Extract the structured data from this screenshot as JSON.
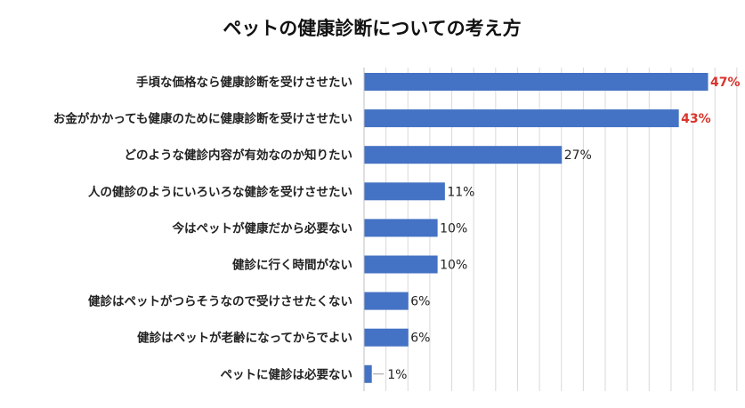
{
  "chart_data": {
    "type": "bar",
    "orientation": "horizontal",
    "title": "ペットの健康診断についての考え方",
    "categories": [
      "手頃な価格なら健康診断を受けさせたい",
      "お金がかかっても健康のために健康診断を受けさせたい",
      "どのような健診内容が有効なのか知りたい",
      "人の健診のようにいろいろな健診を受けさせたい",
      "今はペットが健康だから必要ない",
      "健診に行く時間がない",
      "健診はペットがつらそうなので受けさせたくない",
      "健診はペットが老齢になってからでよい",
      "ペットに健診は必要ない"
    ],
    "values": [
      47,
      43,
      27,
      11,
      10,
      10,
      6,
      6,
      1
    ],
    "value_labels": [
      "47%",
      "43%",
      "27%",
      "11%",
      "10%",
      "10%",
      "6%",
      "6%",
      "1%"
    ],
    "highlight": [
      true,
      true,
      false,
      false,
      false,
      false,
      false,
      false,
      false
    ],
    "xlim": [
      0,
      50
    ],
    "grid": true,
    "legend": "none",
    "colors": {
      "bar": "#4472c4",
      "highlight_label": "#d9342b"
    }
  }
}
